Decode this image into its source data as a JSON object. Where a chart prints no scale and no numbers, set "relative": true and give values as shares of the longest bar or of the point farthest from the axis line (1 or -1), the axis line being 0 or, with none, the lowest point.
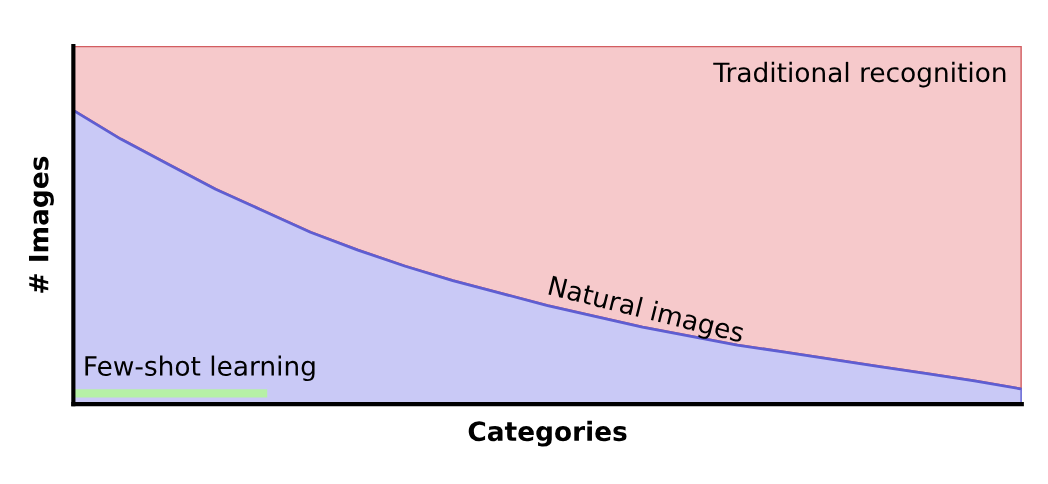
{
  "chart_data": {
    "type": "area",
    "relative": true,
    "xlabel": "Categories",
    "ylabel": "# Images",
    "categories": [
      null,
      null,
      null,
      null,
      null,
      null,
      null,
      null,
      null,
      null,
      null,
      null,
      null,
      null,
      null,
      null,
      null,
      null,
      null,
      null,
      null
    ],
    "series": [
      {
        "name": "Traditional recognition",
        "color": "#f6c9cb",
        "values": [
          1,
          1,
          1,
          1,
          1,
          1,
          1,
          1,
          1,
          1,
          1,
          1,
          1,
          1,
          1,
          1,
          1,
          1,
          1,
          1,
          1
        ]
      },
      {
        "name": "Natural images",
        "color": "#c9c9f6",
        "values": [
          0.82,
          0.74,
          0.67,
          0.6,
          0.54,
          0.48,
          0.43,
          0.385,
          0.345,
          0.31,
          0.275,
          0.245,
          0.215,
          0.19,
          0.165,
          0.145,
          0.125,
          0.105,
          0.085,
          0.065,
          0.042
        ]
      },
      {
        "name": "Few-shot learning",
        "type": "line",
        "color": "#b6f0a6",
        "values": [
          0.03,
          0.03,
          0.03,
          0.03,
          0.03,
          null,
          null,
          null,
          null,
          null,
          null,
          null,
          null,
          null,
          null,
          null,
          null,
          null,
          null,
          null,
          null
        ]
      }
    ],
    "legend": false
  }
}
